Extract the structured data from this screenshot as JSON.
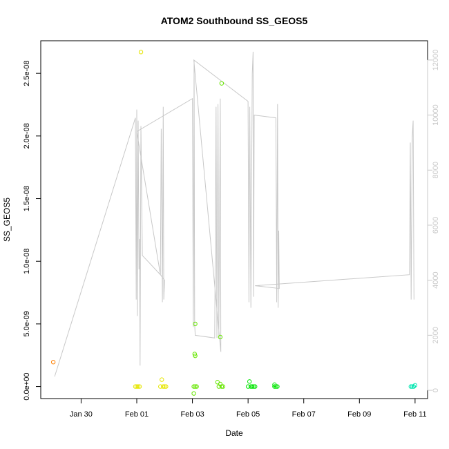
{
  "chart_data": {
    "type": "scatter",
    "title": "ATOM2 Southbound SS_GEOS5",
    "xlabel": "Date",
    "ylabel": "SS_GEOS5",
    "x_ticks": [
      {
        "day": 0,
        "label": "Jan 30"
      },
      {
        "day": 2,
        "label": "Feb 01"
      },
      {
        "day": 4,
        "label": "Feb 03"
      },
      {
        "day": 6,
        "label": "Feb 05"
      },
      {
        "day": 8,
        "label": "Feb 07"
      },
      {
        "day": 10,
        "label": "Feb 09"
      },
      {
        "day": 12,
        "label": "Feb 11"
      }
    ],
    "xlim": [
      -1.45,
      12.45
    ],
    "ylim": [
      -9.6e-10,
      2.76e-08
    ],
    "y_ticks": [
      {
        "value": 0,
        "label": "0.0e+00"
      },
      {
        "value": 5e-09,
        "label": "5.0e-09"
      },
      {
        "value": 1e-08,
        "label": "1.0e-08"
      },
      {
        "value": 1.5e-08,
        "label": "1.5e-08"
      },
      {
        "value": 2e-08,
        "label": "2.0e-08"
      },
      {
        "value": 2.5e-08,
        "label": "2.5e-08"
      }
    ],
    "y2lim": [
      -300,
      12700
    ],
    "y2_ticks": [
      {
        "value": 0,
        "label": "0"
      },
      {
        "value": 2000,
        "label": "2000"
      },
      {
        "value": 4000,
        "label": "4000"
      },
      {
        "value": 6000,
        "label": "6000"
      },
      {
        "value": 8000,
        "label": "8000"
      },
      {
        "value": 10000,
        "label": "10000"
      },
      {
        "value": 12000,
        "label": "12000"
      }
    ],
    "points": [
      {
        "x": -1.0,
        "y": 1.95e-09,
        "color": "#ff7f00"
      },
      {
        "x": 1.95,
        "y": 0.0,
        "color": "#e6e600"
      },
      {
        "x": 2.0,
        "y": 0.0,
        "color": "#e6e600"
      },
      {
        "x": 2.05,
        "y": 0.0,
        "color": "#e6e600"
      },
      {
        "x": 2.1,
        "y": 0.0,
        "color": "#e6e600"
      },
      {
        "x": 2.15,
        "y": 2.67e-08,
        "color": "#e6e600"
      },
      {
        "x": 2.85,
        "y": 0.0,
        "color": "#e6e600"
      },
      {
        "x": 2.9,
        "y": 5.5e-10,
        "color": "#e6e600"
      },
      {
        "x": 2.95,
        "y": 0.0,
        "color": "#e6e600"
      },
      {
        "x": 3.0,
        "y": 0.0,
        "color": "#e6e600"
      },
      {
        "x": 3.05,
        "y": 0.0,
        "color": "#e6e600"
      },
      {
        "x": 4.05,
        "y": 0.0,
        "color": "#66e600"
      },
      {
        "x": 4.08,
        "y": 2.6e-09,
        "color": "#66e600"
      },
      {
        "x": 4.1,
        "y": 2.45e-09,
        "color": "#66e600"
      },
      {
        "x": 4.1,
        "y": 5e-09,
        "color": "#66e600"
      },
      {
        "x": 4.1,
        "y": 0.0,
        "color": "#66e600"
      },
      {
        "x": 4.15,
        "y": 0.0,
        "color": "#66e600"
      },
      {
        "x": 4.05,
        "y": -5.5e-10,
        "color": "#66e600"
      },
      {
        "x": 4.9,
        "y": 3.5e-10,
        "color": "#66e600"
      },
      {
        "x": 4.95,
        "y": 0.0,
        "color": "#66e600"
      },
      {
        "x": 5.0,
        "y": 2e-10,
        "color": "#66e600"
      },
      {
        "x": 5.05,
        "y": 0.0,
        "color": "#66e600"
      },
      {
        "x": 5.1,
        "y": 0.0,
        "color": "#66e600"
      },
      {
        "x": 5.0,
        "y": 3.95e-09,
        "color": "#66e600"
      },
      {
        "x": 5.05,
        "y": 2.42e-08,
        "color": "#66e600"
      },
      {
        "x": 6.0,
        "y": 0.0,
        "color": "#00e600"
      },
      {
        "x": 6.05,
        "y": 4e-10,
        "color": "#00e600"
      },
      {
        "x": 6.1,
        "y": 0.0,
        "color": "#00e600"
      },
      {
        "x": 6.15,
        "y": 0.0,
        "color": "#00e600"
      },
      {
        "x": 6.2,
        "y": 0.0,
        "color": "#00e600"
      },
      {
        "x": 6.25,
        "y": 0.0,
        "color": "#00e600"
      },
      {
        "x": 6.95,
        "y": 0.0,
        "color": "#00e600"
      },
      {
        "x": 6.95,
        "y": 1.5e-10,
        "color": "#00e600"
      },
      {
        "x": 7.0,
        "y": 0.0,
        "color": "#00e600"
      },
      {
        "x": 7.05,
        "y": 0.0,
        "color": "#00e600"
      },
      {
        "x": 11.85,
        "y": 0.0,
        "color": "#00e6b0"
      },
      {
        "x": 11.9,
        "y": 0.0,
        "color": "#00e6b0"
      },
      {
        "x": 11.95,
        "y": 0.0,
        "color": "#00e6b0"
      },
      {
        "x": 12.0,
        "y": 1e-10,
        "color": "#00e6b0"
      }
    ],
    "line_color": "#c8c8c8",
    "line": [
      [
        -0.95,
        500
      ],
      [
        1.95,
        9900
      ],
      [
        1.98,
        3300
      ],
      [
        2.0,
        10200
      ],
      [
        2.02,
        2700
      ],
      [
        2.05,
        9800
      ],
      [
        2.08,
        4400
      ],
      [
        2.1,
        5500
      ],
      [
        2.12,
        900
      ],
      [
        2.15,
        9600
      ],
      [
        2.2,
        4900
      ],
      [
        2.85,
        4200
      ],
      [
        2.88,
        9500
      ],
      [
        2.92,
        3200
      ],
      [
        2.95,
        10300
      ],
      [
        2.97,
        3300
      ],
      [
        3.0,
        4000
      ],
      [
        2.85,
        4200
      ],
      [
        2.0,
        9400
      ],
      [
        4.0,
        10600
      ],
      [
        4.03,
        2300
      ],
      [
        4.06,
        12000
      ],
      [
        4.08,
        2400
      ],
      [
        4.1,
        2000
      ],
      [
        4.8,
        1900
      ],
      [
        4.85,
        10300
      ],
      [
        4.88,
        1900
      ],
      [
        4.92,
        10400
      ],
      [
        4.95,
        2000
      ],
      [
        5.0,
        10600
      ],
      [
        5.02,
        1400
      ],
      [
        4.05,
        12000
      ],
      [
        6.0,
        10500
      ],
      [
        6.03,
        3200
      ],
      [
        6.06,
        10300
      ],
      [
        6.1,
        3000
      ],
      [
        6.15,
        11500
      ],
      [
        6.18,
        12300
      ],
      [
        6.2,
        3400
      ],
      [
        6.22,
        10000
      ],
      [
        7.0,
        9900
      ],
      [
        7.03,
        3200
      ],
      [
        7.06,
        10400
      ],
      [
        7.08,
        3000
      ],
      [
        7.1,
        5800
      ],
      [
        7.12,
        3700
      ],
      [
        6.25,
        3800
      ],
      [
        11.8,
        4200
      ],
      [
        11.83,
        9000
      ],
      [
        11.86,
        3300
      ],
      [
        11.9,
        9200
      ],
      [
        11.93,
        9800
      ],
      [
        11.96,
        3300
      ]
    ]
  }
}
